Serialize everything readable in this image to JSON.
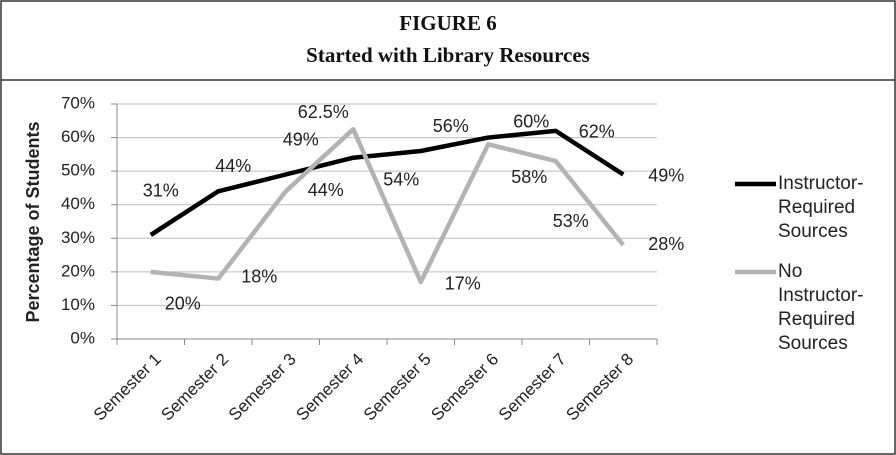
{
  "chart_data": {
    "type": "line",
    "figure_label": "FIGURE 6",
    "title": "Started with Library Resources",
    "ylabel": "Percentage of Students",
    "categories": [
      "Semester 1",
      "Semester 2",
      "Semester 3",
      "Semester 4",
      "Semester 5",
      "Semester 6",
      "Semester 7",
      "Semester 8"
    ],
    "series": [
      {
        "name": "Instructor-Required Sources",
        "color": "#000000",
        "values": [
          31,
          44,
          49,
          54,
          56,
          60,
          62,
          49
        ],
        "value_labels": [
          "31%",
          "44%",
          "49%",
          "54%",
          "56%",
          "60%",
          "62%",
          "49%"
        ]
      },
      {
        "name": "No Instructor-Required Sources",
        "color": "#b3b3b3",
        "values": [
          20,
          18,
          44,
          62.5,
          17,
          58,
          53,
          28
        ],
        "value_labels": [
          "20%",
          "18%",
          "44%",
          "62.5%",
          "17%",
          "58%",
          "53%",
          "28%"
        ]
      }
    ],
    "ylim": [
      0,
      70
    ],
    "yticks": [
      {
        "value": 0,
        "label": "0%"
      },
      {
        "value": 10,
        "label": "10%"
      },
      {
        "value": 20,
        "label": "20%"
      },
      {
        "value": 30,
        "label": "30%"
      },
      {
        "value": 40,
        "label": "40%"
      },
      {
        "value": 50,
        "label": "50%"
      },
      {
        "value": 60,
        "label": "60%"
      },
      {
        "value": 70,
        "label": "70%"
      }
    ],
    "grid": true,
    "legend": "right"
  }
}
